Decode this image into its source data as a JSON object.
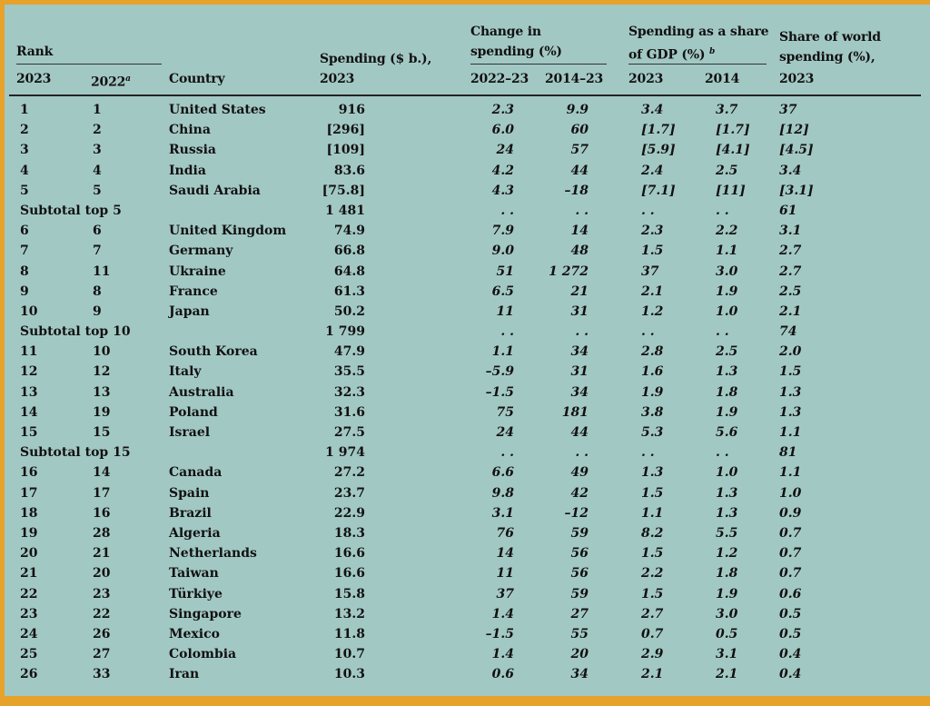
{
  "header": {
    "rank": "Rank",
    "rank_2023": "2023",
    "rank_2022": "2022",
    "rank_2022_note": "a",
    "country": "Country",
    "spending_line1": "Spending ($ b.),",
    "spending_line2": "2023",
    "change_line1": "Change in",
    "change_line2": "spending (%)",
    "change_col1": "2022–23",
    "change_col2": "2014–23",
    "gdp_line1": "Spending as a share",
    "gdp_line2": "of GDP (%)",
    "gdp_note": "b",
    "gdp_col1": "2023",
    "gdp_col2": "2014",
    "world_line1": "Share of world",
    "world_line2": "spending (%),",
    "world_line3": "2023"
  },
  "rows": [
    {
      "type": "row",
      "r23": "1",
      "r22": "1",
      "country": "United States",
      "spending": "916",
      "chg1": "2.3",
      "chg2": "9.9",
      "gdp23": "3.4",
      "gdp14": "3.7",
      "share": "37"
    },
    {
      "type": "row",
      "r23": "2",
      "r22": "2",
      "country": "China",
      "spending": "[296]",
      "chg1": "6.0",
      "chg2": "60",
      "gdp23": "[1.7]",
      "gdp14": "[1.7]",
      "share": "[12]"
    },
    {
      "type": "row",
      "r23": "3",
      "r22": "3",
      "country": "Russia",
      "spending": "[109]",
      "chg1": "24",
      "chg2": "57",
      "gdp23": "[5.9]",
      "gdp14": "[4.1]",
      "share": "[4.5]"
    },
    {
      "type": "row",
      "r23": "4",
      "r22": "4",
      "country": "India",
      "spending": "83.6",
      "chg1": "4.2",
      "chg2": "44",
      "gdp23": "2.4",
      "gdp14": "2.5",
      "share": "3.4"
    },
    {
      "type": "row",
      "r23": "5",
      "r22": "5",
      "country": "Saudi Arabia",
      "spending": "[75.8]",
      "chg1": "4.3",
      "chg2": "–18",
      "gdp23": "[7.1]",
      "gdp14": "[11]",
      "share": "[3.1]"
    },
    {
      "type": "sub",
      "label": "Subtotal top 5",
      "spending": "1 481",
      "chg1": ". .",
      "chg2": ". .",
      "gdp23": ". .",
      "gdp14": ". .",
      "share": "61"
    },
    {
      "type": "row",
      "r23": "6",
      "r22": "6",
      "country": "United Kingdom",
      "spending": "74.9",
      "chg1": "7.9",
      "chg2": "14",
      "gdp23": "2.3",
      "gdp14": "2.2",
      "share": "3.1"
    },
    {
      "type": "row",
      "r23": "7",
      "r22": "7",
      "country": "Germany",
      "spending": "66.8",
      "chg1": "9.0",
      "chg2": "48",
      "gdp23": "1.5",
      "gdp14": "1.1",
      "share": "2.7"
    },
    {
      "type": "row",
      "r23": "8",
      "r22": "11",
      "country": "Ukraine",
      "spending": "64.8",
      "chg1": "51",
      "chg2": "1 272",
      "gdp23": "37",
      "gdp14": "3.0",
      "share": "2.7"
    },
    {
      "type": "row",
      "r23": "9",
      "r22": "8",
      "country": "France",
      "spending": "61.3",
      "chg1": "6.5",
      "chg2": "21",
      "gdp23": "2.1",
      "gdp14": "1.9",
      "share": "2.5"
    },
    {
      "type": "row",
      "r23": "10",
      "r22": "9",
      "country": "Japan",
      "spending": "50.2",
      "chg1": "11",
      "chg2": "31",
      "gdp23": "1.2",
      "gdp14": "1.0",
      "share": "2.1"
    },
    {
      "type": "sub",
      "label": "Subtotal top 10",
      "spending": "1 799",
      "chg1": ". .",
      "chg2": ". .",
      "gdp23": ". .",
      "gdp14": ". .",
      "share": "74"
    },
    {
      "type": "row",
      "r23": "11",
      "r22": "10",
      "country": "South Korea",
      "spending": "47.9",
      "chg1": "1.1",
      "chg2": "34",
      "gdp23": "2.8",
      "gdp14": "2.5",
      "share": "2.0"
    },
    {
      "type": "row",
      "r23": "12",
      "r22": "12",
      "country": "Italy",
      "spending": "35.5",
      "chg1": "–5.9",
      "chg2": "31",
      "gdp23": "1.6",
      "gdp14": "1.3",
      "share": "1.5"
    },
    {
      "type": "row",
      "r23": "13",
      "r22": "13",
      "country": "Australia",
      "spending": "32.3",
      "chg1": "–1.5",
      "chg2": "34",
      "gdp23": "1.9",
      "gdp14": "1.8",
      "share": "1.3"
    },
    {
      "type": "row",
      "r23": "14",
      "r22": "19",
      "country": "Poland",
      "spending": "31.6",
      "chg1": "75",
      "chg2": "181",
      "gdp23": "3.8",
      "gdp14": "1.9",
      "share": "1.3"
    },
    {
      "type": "row",
      "r23": "15",
      "r22": "15",
      "country": "Israel",
      "spending": "27.5",
      "chg1": "24",
      "chg2": "44",
      "gdp23": "5.3",
      "gdp14": "5.6",
      "share": "1.1"
    },
    {
      "type": "sub",
      "label": "Subtotal top 15",
      "spending": "1 974",
      "chg1": ". .",
      "chg2": ". .",
      "gdp23": ". .",
      "gdp14": ". .",
      "share": "81"
    },
    {
      "type": "row",
      "r23": "16",
      "r22": "14",
      "country": "Canada",
      "spending": "27.2",
      "chg1": "6.6",
      "chg2": "49",
      "gdp23": "1.3",
      "gdp14": "1.0",
      "share": "1.1"
    },
    {
      "type": "row",
      "r23": "17",
      "r22": "17",
      "country": "Spain",
      "spending": "23.7",
      "chg1": "9.8",
      "chg2": "42",
      "gdp23": "1.5",
      "gdp14": "1.3",
      "share": "1.0"
    },
    {
      "type": "row",
      "r23": "18",
      "r22": "16",
      "country": "Brazil",
      "spending": "22.9",
      "chg1": "3.1",
      "chg2": "–12",
      "gdp23": "1.1",
      "gdp14": "1.3",
      "share": "0.9"
    },
    {
      "type": "row",
      "r23": "19",
      "r22": "28",
      "country": "Algeria",
      "spending": "18.3",
      "chg1": "76",
      "chg2": "59",
      "gdp23": "8.2",
      "gdp14": "5.5",
      "share": "0.7"
    },
    {
      "type": "row",
      "r23": "20",
      "r22": "21",
      "country": "Netherlands",
      "spending": "16.6",
      "chg1": "14",
      "chg2": "56",
      "gdp23": "1.5",
      "gdp14": "1.2",
      "share": "0.7"
    },
    {
      "type": "row",
      "r23": "21",
      "r22": "20",
      "country": "Taiwan",
      "spending": "16.6",
      "chg1": "11",
      "chg2": "56",
      "gdp23": "2.2",
      "gdp14": "1.8",
      "share": "0.7"
    },
    {
      "type": "row",
      "r23": "22",
      "r22": "23",
      "country": "Türkiye",
      "spending": "15.8",
      "chg1": "37",
      "chg2": "59",
      "gdp23": "1.5",
      "gdp14": "1.9",
      "share": "0.6"
    },
    {
      "type": "row",
      "r23": "23",
      "r22": "22",
      "country": "Singapore",
      "spending": "13.2",
      "chg1": "1.4",
      "chg2": "27",
      "gdp23": "2.7",
      "gdp14": "3.0",
      "share": "0.5"
    },
    {
      "type": "row",
      "r23": "24",
      "r22": "26",
      "country": "Mexico",
      "spending": "11.8",
      "chg1": "–1.5",
      "chg2": "55",
      "gdp23": "0.7",
      "gdp14": "0.5",
      "share": "0.5"
    },
    {
      "type": "row",
      "r23": "25",
      "r22": "27",
      "country": "Colombia",
      "spending": "10.7",
      "chg1": "1.4",
      "chg2": "20",
      "gdp23": "2.9",
      "gdp14": "3.1",
      "share": "0.4"
    },
    {
      "type": "row",
      "r23": "26",
      "r22": "33",
      "country": "Iran",
      "spending": "10.3",
      "chg1": "0.6",
      "chg2": "34",
      "gdp23": "2.1",
      "gdp14": "2.1",
      "share": "0.4"
    }
  ]
}
